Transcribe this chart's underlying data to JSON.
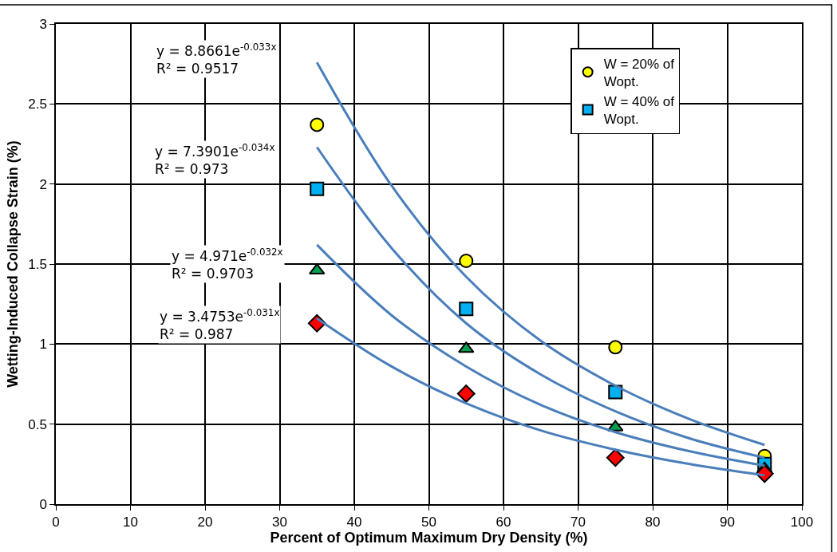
{
  "chart_data": {
    "type": "scatter",
    "xlabel": "Percent of Optimum Maximum Dry Density (%)",
    "ylabel": "Wetting-Induced Collapse Strain (%)",
    "xlim": [
      0,
      100
    ],
    "xticks": [
      0,
      10,
      20,
      30,
      40,
      50,
      60,
      70,
      80,
      90,
      100
    ],
    "ylim": [
      0,
      3
    ],
    "yticks": [
      0,
      0.5,
      1,
      1.5,
      2,
      2.5,
      3
    ],
    "grid": true,
    "legend": "top right",
    "series": [
      {
        "name": "W = 20% of\nWopt.",
        "color": "#ffff00",
        "marker": "circle",
        "x": [
          35,
          55,
          75,
          95
        ],
        "values": [
          2.37,
          1.52,
          0.98,
          0.3
        ]
      },
      {
        "name": "W = 40% of\nWopt.",
        "color": "#00b0f0",
        "marker": "square",
        "x": [
          35,
          55,
          75,
          95
        ],
        "values": [
          1.97,
          1.22,
          0.7,
          0.25
        ]
      },
      {
        "color": "#00a050",
        "marker": "triangle",
        "x": [
          35,
          55,
          75,
          95
        ],
        "values": [
          1.46,
          0.97,
          0.48,
          0.22
        ]
      },
      {
        "color": "#ff0000",
        "marker": "diamond",
        "x": [
          35,
          55,
          75,
          95
        ],
        "values": [
          1.13,
          0.69,
          0.29,
          0.19
        ]
      },
      {
        "type": "line",
        "color": "#4a7ebb",
        "marker": "none",
        "x": [
          35,
          45,
          55,
          65,
          75,
          85,
          95
        ],
        "values": [
          2.76,
          1.99,
          1.42,
          1.02,
          0.74,
          0.53,
          0.37
        ]
      },
      {
        "type": "line",
        "color": "#4a7ebb",
        "marker": "none",
        "x": [
          35,
          45,
          55,
          65,
          75,
          85,
          95
        ],
        "values": [
          2.23,
          1.6,
          1.13,
          0.81,
          0.58,
          0.41,
          0.29
        ]
      },
      {
        "type": "line",
        "color": "#4a7ebb",
        "marker": "none",
        "x": [
          35,
          45,
          55,
          65,
          75,
          85,
          95
        ],
        "values": [
          1.62,
          1.18,
          0.86,
          0.62,
          0.45,
          0.33,
          0.24
        ]
      },
      {
        "type": "line",
        "color": "#4a7ebb",
        "marker": "none",
        "x": [
          35,
          45,
          55,
          65,
          75,
          85,
          95
        ],
        "values": [
          1.16,
          0.86,
          0.63,
          0.46,
          0.34,
          0.25,
          0.18
        ]
      }
    ],
    "annotations": [
      "y = 8.8661e$^{-0.033x}$\nR² = 0.9517",
      "y = 7.3901e$^{-0.034x}$\nR² = 0.973",
      "y = 4.971e$^{-0.032x}$\nR² = 0.9703",
      "y = 3.4753e$^{-0.031x}$\nR² = 0.987"
    ]
  }
}
